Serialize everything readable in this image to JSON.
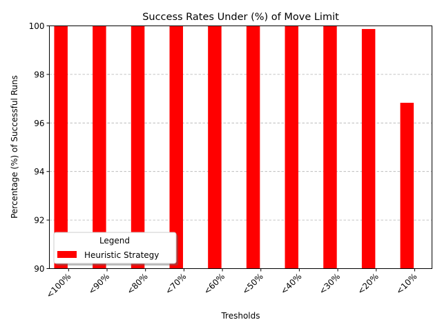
{
  "chart_data": {
    "type": "bar",
    "title": "Success Rates Under (%) of Move Limit",
    "xlabel": "Tresholds",
    "ylabel": "Percentage (%) of Successful Runs",
    "categories": [
      "<100%",
      "<90%",
      "<80%",
      "<70%",
      "<60%",
      "<50%",
      "<40%",
      "<30%",
      "<20%",
      "<10%"
    ],
    "series": [
      {
        "name": "Heuristic Strategy",
        "color": "#ff0000",
        "values": [
          100,
          100,
          100,
          100,
          100,
          100,
          100,
          100,
          99.87,
          96.83
        ]
      }
    ],
    "ylim": [
      90,
      100
    ],
    "yticks": [
      "90",
      "92",
      "94",
      "96",
      "98",
      "100"
    ],
    "grid": "y-dashed",
    "legend": {
      "title": "Legend",
      "placement": "lower-left"
    }
  }
}
